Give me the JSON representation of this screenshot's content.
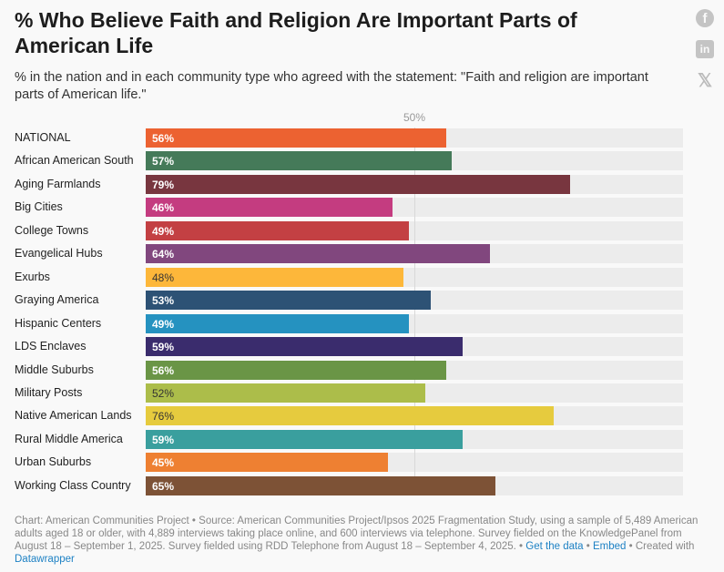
{
  "title": "% Who Believe Faith and Religion Are Important Parts of American Life",
  "subtitle": "% in the nation and in each community type who agreed with the statement: \"Faith and religion are important parts of American life.\"",
  "share_icons": [
    "facebook-icon",
    "linkedin-icon",
    "x-icon"
  ],
  "chart_data": {
    "type": "bar",
    "title": "% Who Believe Faith and Religion Are Important Parts of American Life",
    "xlim": [
      0,
      100
    ],
    "reference_line": {
      "value": 50,
      "label": "50%"
    },
    "categories": [
      "NATIONAL",
      "African American South",
      "Aging Farmlands",
      "Big Cities",
      "College Towns",
      "Evangelical Hubs",
      "Exurbs",
      "Graying America",
      "Hispanic Centers",
      "LDS Enclaves",
      "Middle Suburbs",
      "Military Posts",
      "Native American Lands",
      "Rural Middle America",
      "Urban Suburbs",
      "Working Class Country"
    ],
    "values": [
      56,
      57,
      79,
      46,
      49,
      64,
      48,
      53,
      49,
      59,
      56,
      52,
      76,
      59,
      45,
      65
    ],
    "labels": [
      "56%",
      "57%",
      "79%",
      "46%",
      "49%",
      "64%",
      "48%",
      "53%",
      "49%",
      "59%",
      "56%",
      "52%",
      "76%",
      "59%",
      "45%",
      "65%"
    ],
    "colors": [
      "#ec6231",
      "#457a59",
      "#78363f",
      "#c43c80",
      "#c34043",
      "#81477e",
      "#fdb73a",
      "#2d5275",
      "#2592c0",
      "#3a2c6d",
      "#6a9546",
      "#acbd4a",
      "#e6cb3e",
      "#3a9f9e",
      "#ee8032",
      "#7d5236"
    ],
    "dark_labels": [
      false,
      false,
      false,
      false,
      false,
      false,
      true,
      false,
      false,
      false,
      false,
      true,
      true,
      false,
      false,
      false
    ]
  },
  "footer": {
    "text": "Chart: American Communities Project • Source: American Communities Project/Ipsos 2025 Fragmentation Study, using a sample of 5,489 American adults aged 18 or older, with 4,889 interviews taking place online, and 600 interviews via telephone. Survey fielded on the KnowledgePanel from August 18 – September 1, 2025. Survey fielded using RDD Telephone from August 18 – September 4, 2025. • ",
    "get_data": "Get the data",
    "sep": " • ",
    "embed": "Embed",
    "created": "  • Created with ",
    "datawrapper": "Datawrapper"
  }
}
